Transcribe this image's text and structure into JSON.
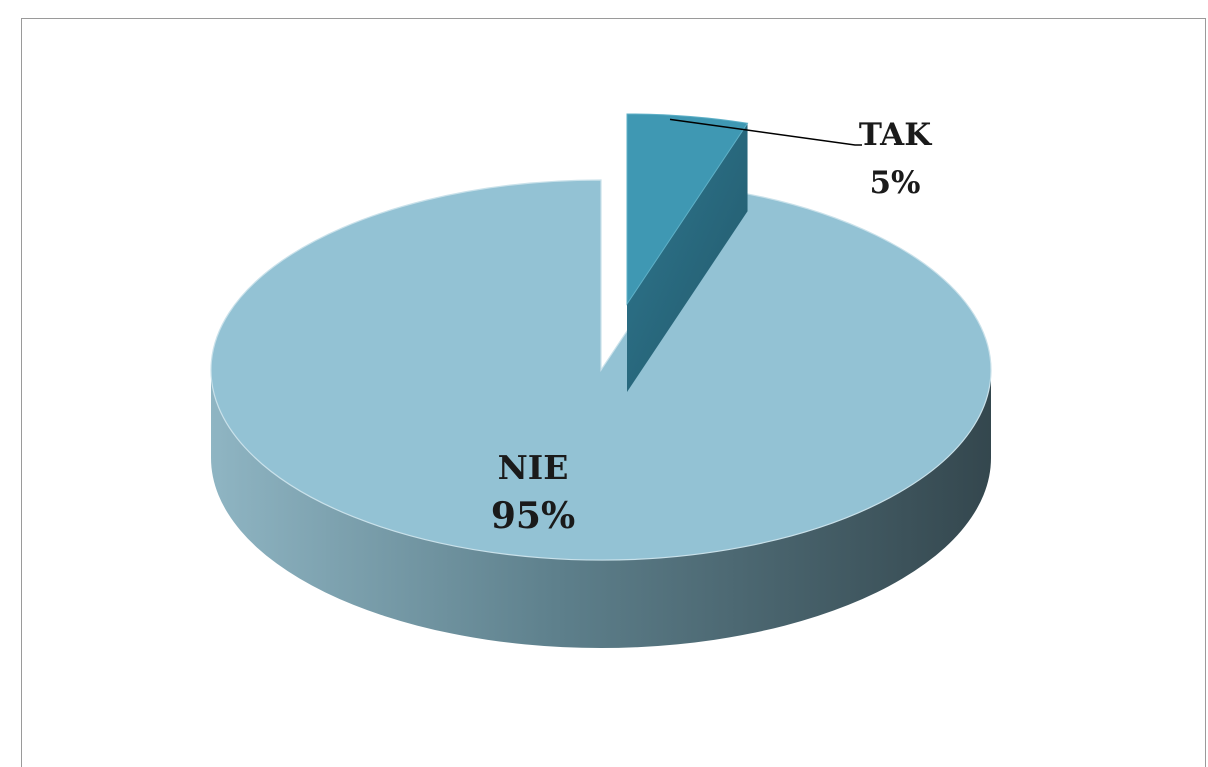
{
  "chart_data": {
    "type": "pie",
    "title": "",
    "slices": [
      {
        "label": "TAK",
        "value": 5,
        "percent_label": "5%",
        "color": "#3f98b3",
        "side_color": "#2d7289",
        "exploded": true
      },
      {
        "label": "NIE",
        "value": 95,
        "percent_label": "95%",
        "color": "#93c2d4",
        "side_color": "#3e5259",
        "exploded": false
      }
    ],
    "legend": "none",
    "style": "3d-exploded"
  }
}
